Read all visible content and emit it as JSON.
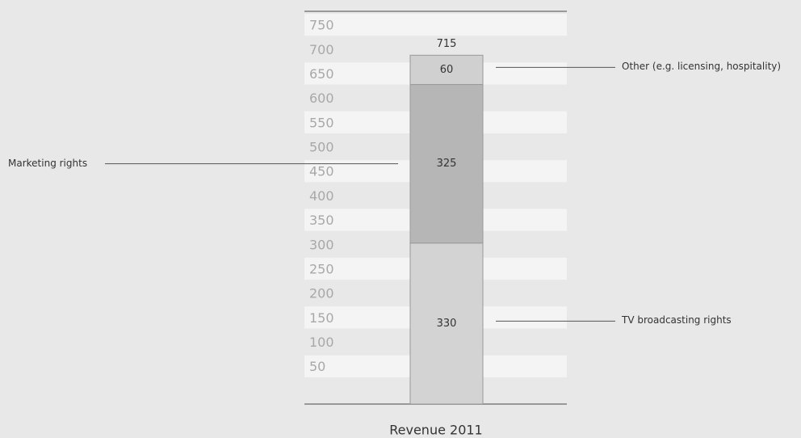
{
  "chart_data": {
    "type": "stacked_bar",
    "categories": [
      "Revenue 2011"
    ],
    "series": [
      {
        "name": "TV broadcasting rights",
        "color": "#d3d3d3",
        "values": [
          330
        ]
      },
      {
        "name": "Marketing rights",
        "color": "#b6b6b6",
        "values": [
          325
        ]
      },
      {
        "name": "Other (e.g. licensing, hospitality)",
        "color": "#d0d0d0",
        "values": [
          60
        ]
      }
    ],
    "total": [
      715
    ],
    "ylim": [
      0,
      800
    ],
    "yticks": [
      50,
      100,
      150,
      200,
      250,
      300,
      350,
      400,
      450,
      500,
      550,
      600,
      650,
      700,
      750
    ]
  }
}
